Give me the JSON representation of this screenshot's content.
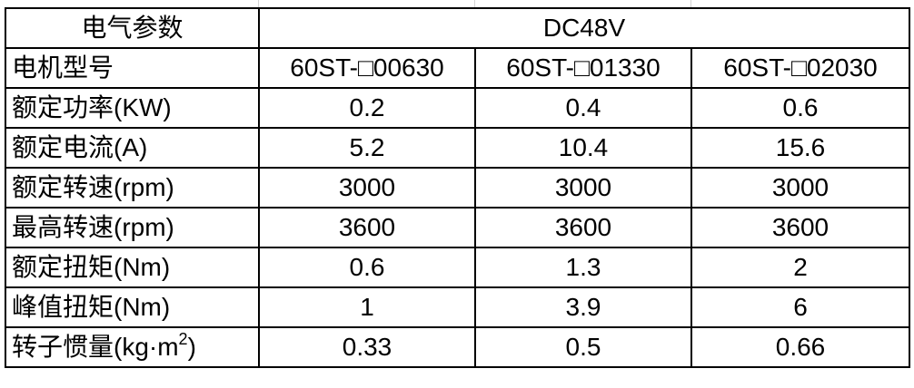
{
  "header": {
    "label": "电气参数",
    "voltage": "DC48V"
  },
  "model_row": {
    "label": "电机型号",
    "models": [
      "60ST-□00630",
      "60ST-□01330",
      "60ST-□02030"
    ]
  },
  "rows": [
    {
      "label": "额定功率(KW)",
      "values": [
        "0.2",
        "0.4",
        "0.6"
      ]
    },
    {
      "label": "额定电流(A)",
      "values": [
        "5.2",
        "10.4",
        "15.6"
      ]
    },
    {
      "label": "额定转速(rpm)",
      "values": [
        "3000",
        "3000",
        "3000"
      ]
    },
    {
      "label": "最高转速(rpm)",
      "values": [
        "3600",
        "3600",
        "3600"
      ]
    },
    {
      "label": "额定扭矩(Nm)",
      "values": [
        "0.6",
        "1.3",
        "2"
      ]
    },
    {
      "label": "峰值扭矩(Nm)",
      "values": [
        "1",
        "3.9",
        "6"
      ]
    }
  ],
  "inertia_row": {
    "label": "转子惯量(kg·m",
    "sup": "2",
    "label_end": ")",
    "values": [
      "0.33",
      "0.5",
      "0.66"
    ]
  }
}
